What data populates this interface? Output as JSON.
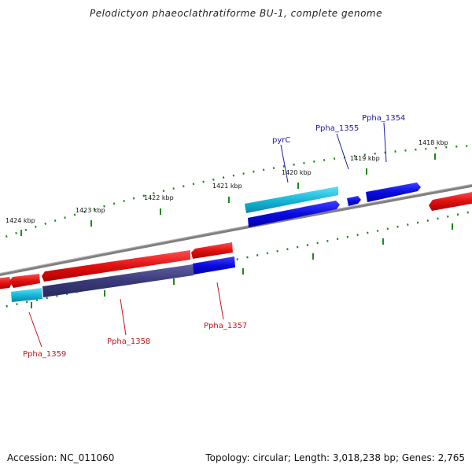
{
  "title": "Pelodictyon phaeoclathratiforme BU-1, complete genome",
  "footer": {
    "accession": "Accession: NC_011060",
    "summary": "Topology: circular; Length: 3,018,238 bp; Genes: 2,765"
  },
  "kbp_labels": [
    "1424 kbp",
    "1423 kbp",
    "1422 kbp",
    "1421 kbp",
    "1420 kbp",
    "1419 kbp",
    "1418 kbp"
  ],
  "gene_labels": {
    "pyrC": "pyrC",
    "ppha_1355": "Ppha_1355",
    "ppha_1354": "Ppha_1354",
    "ppha_1357": "Ppha_1357",
    "ppha_1358": "Ppha_1358",
    "ppha_1359": "Ppha_1359"
  },
  "colors": {
    "forward_cds": "#e01010",
    "reverse_cds": "#0a0ae0",
    "rna": "#18b8d8",
    "dark_cds": "#3a3a7a",
    "backbone": "#808080",
    "ticks": "#1a8a1a"
  }
}
